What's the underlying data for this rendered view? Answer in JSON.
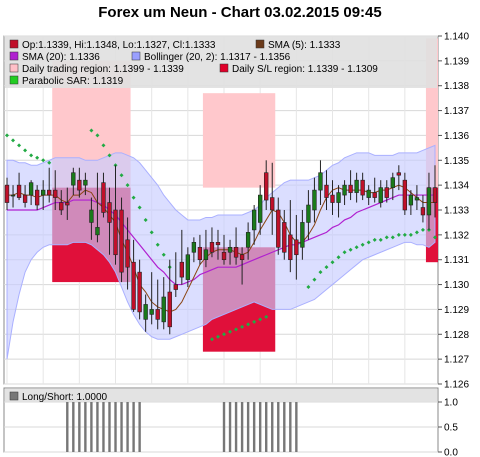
{
  "title": "Forex um Neun - Chart 03.02.2015 09:45",
  "legend": [
    {
      "label": "Op:1.1339, Hi:1.1348, Lo:1.1327, Cl:1.1333",
      "color": "#c0102a"
    },
    {
      "label": "SMA (5): 1.1333",
      "color": "#6b3a1a"
    },
    {
      "label": "SMA (20): 1.1336",
      "color": "#b020d0"
    },
    {
      "label": "Bollinger (20, 2): 1.1317 - 1.1356",
      "color": "#9aa0ff"
    },
    {
      "label": "Daily trading region: 1.1399 - 1.1339",
      "color": "#ffc0c8"
    },
    {
      "label": "Daily S/L region: 1.1339 - 1.1309",
      "color": "#e0002a"
    },
    {
      "label": "Parabolic SAR: 1.1319",
      "color": "#22cc22"
    }
  ],
  "sub_legend": {
    "label": "Long/Short: 1.0000",
    "color": "#777777"
  },
  "colors": {
    "up": "#1a7a1a",
    "down": "#c0102a",
    "sma5": "#8b4513",
    "sma20": "#b020d0",
    "band": "#c8ccff",
    "sar": "#22aa44",
    "trading": "#ffc8cc",
    "sl": "#e0103a",
    "bar": "#777777"
  },
  "chart_data": [
    {
      "type": "candlestick",
      "ylim": [
        1.126,
        1.14
      ],
      "yticks": [
        "1.126",
        "1.127",
        "1.128",
        "1.129",
        "1.130",
        "1.131",
        "1.132",
        "1.133",
        "1.134",
        "1.135",
        "1.136",
        "1.137",
        "1.138",
        "1.139",
        "1.140"
      ],
      "candles": [
        {
          "o": 1.134,
          "h": 1.1343,
          "l": 1.133,
          "c": 1.1333
        },
        {
          "o": 1.1336,
          "h": 1.134,
          "l": 1.1331,
          "c": 1.1336
        },
        {
          "o": 1.134,
          "h": 1.1345,
          "l": 1.1334,
          "c": 1.1335
        },
        {
          "o": 1.1336,
          "h": 1.134,
          "l": 1.1331,
          "c": 1.1333
        },
        {
          "o": 1.1336,
          "h": 1.1342,
          "l": 1.1332,
          "c": 1.1341
        },
        {
          "o": 1.1338,
          "h": 1.134,
          "l": 1.133,
          "c": 1.1332
        },
        {
          "o": 1.1336,
          "h": 1.1342,
          "l": 1.133,
          "c": 1.1338
        },
        {
          "o": 1.1338,
          "h": 1.1347,
          "l": 1.1333,
          "c": 1.1336
        },
        {
          "o": 1.1338,
          "h": 1.1346,
          "l": 1.133,
          "c": 1.1335
        },
        {
          "o": 1.1333,
          "h": 1.1338,
          "l": 1.1328,
          "c": 1.133
        },
        {
          "o": 1.1333,
          "h": 1.1339,
          "l": 1.1326,
          "c": 1.1332
        },
        {
          "o": 1.134,
          "h": 1.1347,
          "l": 1.1336,
          "c": 1.1345
        },
        {
          "o": 1.1342,
          "h": 1.1347,
          "l": 1.1335,
          "c": 1.1338
        },
        {
          "o": 1.134,
          "h": 1.1345,
          "l": 1.1336,
          "c": 1.1342
        },
        {
          "o": 1.1325,
          "h": 1.1335,
          "l": 1.1318,
          "c": 1.133
        },
        {
          "o": 1.132,
          "h": 1.1345,
          "l": 1.1317,
          "c": 1.1323
        },
        {
          "o": 1.1341,
          "h": 1.1345,
          "l": 1.1327,
          "c": 1.1329
        },
        {
          "o": 1.1333,
          "h": 1.1339,
          "l": 1.1312,
          "c": 1.1325
        },
        {
          "o": 1.133,
          "h": 1.1348,
          "l": 1.1308,
          "c": 1.1312
        },
        {
          "o": 1.133,
          "h": 1.1335,
          "l": 1.1301,
          "c": 1.1305
        },
        {
          "o": 1.1318,
          "h": 1.1327,
          "l": 1.1298,
          "c": 1.1307
        },
        {
          "o": 1.1309,
          "h": 1.1318,
          "l": 1.1289,
          "c": 1.129
        },
        {
          "o": 1.1305,
          "h": 1.131,
          "l": 1.1286,
          "c": 1.1289
        },
        {
          "o": 1.1286,
          "h": 1.1296,
          "l": 1.1281,
          "c": 1.1292
        },
        {
          "o": 1.1288,
          "h": 1.1305,
          "l": 1.1284,
          "c": 1.129
        },
        {
          "o": 1.129,
          "h": 1.1302,
          "l": 1.1282,
          "c": 1.1286
        },
        {
          "o": 1.1285,
          "h": 1.1303,
          "l": 1.1282,
          "c": 1.1295
        },
        {
          "o": 1.1297,
          "h": 1.131,
          "l": 1.128,
          "c": 1.1283
        },
        {
          "o": 1.13,
          "h": 1.1313,
          "l": 1.1295,
          "c": 1.1298
        },
        {
          "o": 1.1309,
          "h": 1.1322,
          "l": 1.13,
          "c": 1.1303
        },
        {
          "o": 1.1302,
          "h": 1.1315,
          "l": 1.1299,
          "c": 1.1312
        },
        {
          "o": 1.1313,
          "h": 1.1319,
          "l": 1.1309,
          "c": 1.1317
        },
        {
          "o": 1.1315,
          "h": 1.132,
          "l": 1.1308,
          "c": 1.131
        },
        {
          "o": 1.131,
          "h": 1.1322,
          "l": 1.1307,
          "c": 1.1314
        },
        {
          "o": 1.1317,
          "h": 1.1323,
          "l": 1.1311,
          "c": 1.1313
        },
        {
          "o": 1.1317,
          "h": 1.1322,
          "l": 1.131,
          "c": 1.1316
        },
        {
          "o": 1.1313,
          "h": 1.132,
          "l": 1.1308,
          "c": 1.131
        },
        {
          "o": 1.1313,
          "h": 1.1318,
          "l": 1.1308,
          "c": 1.1315
        },
        {
          "o": 1.1315,
          "h": 1.1323,
          "l": 1.1308,
          "c": 1.1311
        },
        {
          "o": 1.1312,
          "h": 1.1315,
          "l": 1.13,
          "c": 1.131
        },
        {
          "o": 1.1315,
          "h": 1.1325,
          "l": 1.131,
          "c": 1.1321
        },
        {
          "o": 1.1322,
          "h": 1.1332,
          "l": 1.1316,
          "c": 1.133
        },
        {
          "o": 1.1325,
          "h": 1.134,
          "l": 1.132,
          "c": 1.1336
        },
        {
          "o": 1.1345,
          "h": 1.135,
          "l": 1.133,
          "c": 1.1334
        },
        {
          "o": 1.1335,
          "h": 1.1349,
          "l": 1.132,
          "c": 1.133
        },
        {
          "o": 1.133,
          "h": 1.1335,
          "l": 1.1312,
          "c": 1.1315
        },
        {
          "o": 1.1325,
          "h": 1.133,
          "l": 1.131,
          "c": 1.1313
        },
        {
          "o": 1.132,
          "h": 1.1334,
          "l": 1.1305,
          "c": 1.131
        },
        {
          "o": 1.1318,
          "h": 1.1328,
          "l": 1.1302,
          "c": 1.1312
        },
        {
          "o": 1.1315,
          "h": 1.133,
          "l": 1.131,
          "c": 1.1325
        },
        {
          "o": 1.1325,
          "h": 1.1338,
          "l": 1.1318,
          "c": 1.1332
        },
        {
          "o": 1.133,
          "h": 1.1343,
          "l": 1.1325,
          "c": 1.1338
        },
        {
          "o": 1.1338,
          "h": 1.135,
          "l": 1.1332,
          "c": 1.1345
        },
        {
          "o": 1.134,
          "h": 1.1346,
          "l": 1.133,
          "c": 1.1335
        },
        {
          "o": 1.1336,
          "h": 1.1342,
          "l": 1.1328,
          "c": 1.1333
        },
        {
          "o": 1.1333,
          "h": 1.134,
          "l": 1.1327,
          "c": 1.1337
        },
        {
          "o": 1.1336,
          "h": 1.1342,
          "l": 1.1332,
          "c": 1.134
        },
        {
          "o": 1.134,
          "h": 1.1346,
          "l": 1.1334,
          "c": 1.1337
        },
        {
          "o": 1.1337,
          "h": 1.1345,
          "l": 1.1333,
          "c": 1.1342
        },
        {
          "o": 1.1342,
          "h": 1.1345,
          "l": 1.1334,
          "c": 1.1336
        },
        {
          "o": 1.1335,
          "h": 1.134,
          "l": 1.1332,
          "c": 1.1338
        },
        {
          "o": 1.1337,
          "h": 1.1343,
          "l": 1.1333,
          "c": 1.1335
        },
        {
          "o": 1.1333,
          "h": 1.1342,
          "l": 1.1331,
          "c": 1.1339
        },
        {
          "o": 1.1339,
          "h": 1.1342,
          "l": 1.1333,
          "c": 1.1335
        },
        {
          "o": 1.1339,
          "h": 1.1345,
          "l": 1.1334,
          "c": 1.1343
        },
        {
          "o": 1.1345,
          "h": 1.1348,
          "l": 1.1338,
          "c": 1.1344
        },
        {
          "o": 1.1342,
          "h": 1.1345,
          "l": 1.1328,
          "c": 1.133
        },
        {
          "o": 1.1332,
          "h": 1.1338,
          "l": 1.1328,
          "c": 1.1336
        },
        {
          "o": 1.1334,
          "h": 1.134,
          "l": 1.133,
          "c": 1.1335
        },
        {
          "o": 1.1331,
          "h": 1.1336,
          "l": 1.1325,
          "c": 1.1328
        },
        {
          "o": 1.1328,
          "h": 1.1345,
          "l": 1.1322,
          "c": 1.1339
        },
        {
          "o": 1.1339,
          "h": 1.1348,
          "l": 1.1327,
          "c": 1.1333
        }
      ],
      "sma5": [
        1.1336,
        1.1336,
        1.1337,
        1.1336,
        1.1336,
        1.1335,
        1.1336,
        1.1336,
        1.1336,
        1.1334,
        1.1333,
        1.1336,
        1.1336,
        1.1338,
        1.1337,
        1.1333,
        1.1331,
        1.1328,
        1.1325,
        1.1318,
        1.1313,
        1.1307,
        1.13,
        1.1297,
        1.1293,
        1.1291,
        1.129,
        1.1289,
        1.129,
        1.1293,
        1.1298,
        1.1303,
        1.1308,
        1.1311,
        1.1313,
        1.1314,
        1.1314,
        1.1314,
        1.1313,
        1.1312,
        1.1313,
        1.1317,
        1.1322,
        1.1326,
        1.133,
        1.1329,
        1.1325,
        1.132,
        1.1317,
        1.1317,
        1.132,
        1.1324,
        1.133,
        1.1335,
        1.1338,
        1.1339,
        1.1338,
        1.1338,
        1.1338,
        1.1338,
        1.1337,
        1.1337,
        1.1338,
        1.1338,
        1.1339,
        1.134,
        1.1339,
        1.1337,
        1.1335,
        1.1333,
        1.1333,
        1.1333
      ],
      "sma20": [
        1.133,
        1.133,
        1.133,
        1.133,
        1.133,
        1.133,
        1.1331,
        1.1332,
        1.1333,
        1.1333,
        1.1333,
        1.1334,
        1.1334,
        1.1334,
        1.1334,
        1.1333,
        1.1332,
        1.133,
        1.1328,
        1.1325,
        1.1322,
        1.1319,
        1.1316,
        1.1313,
        1.131,
        1.1307,
        1.1305,
        1.1302,
        1.13,
        1.13,
        1.1301,
        1.1302,
        1.1304,
        1.1305,
        1.1306,
        1.1307,
        1.1307,
        1.1307,
        1.1307,
        1.1308,
        1.1309,
        1.131,
        1.1311,
        1.1312,
        1.1313,
        1.1314,
        1.1315,
        1.1316,
        1.1316,
        1.1317,
        1.1318,
        1.1319,
        1.132,
        1.1321,
        1.1323,
        1.1324,
        1.1326,
        1.1327,
        1.1329,
        1.133,
        1.1331,
        1.1332,
        1.1333,
        1.1334,
        1.1335,
        1.1336,
        1.1336,
        1.1336,
        1.1336,
        1.1336,
        1.1336,
        1.1336
      ],
      "bb_upper": [
        1.135,
        1.135,
        1.1349,
        1.1349,
        1.1348,
        1.1348,
        1.1349,
        1.135,
        1.1351,
        1.1351,
        1.1351,
        1.1351,
        1.1351,
        1.135,
        1.135,
        1.135,
        1.1351,
        1.1352,
        1.1353,
        1.1353,
        1.1352,
        1.1351,
        1.1349,
        1.1346,
        1.1343,
        1.134,
        1.1336,
        1.1333,
        1.133,
        1.1328,
        1.1326,
        1.1326,
        1.1326,
        1.1327,
        1.1327,
        1.1328,
        1.1328,
        1.1328,
        1.1328,
        1.1328,
        1.1329,
        1.133,
        1.1332,
        1.1335,
        1.1337,
        1.1339,
        1.1341,
        1.1342,
        1.1342,
        1.1342,
        1.1342,
        1.1343,
        1.1344,
        1.1346,
        1.1348,
        1.1349,
        1.1351,
        1.1352,
        1.1353,
        1.1353,
        1.1353,
        1.1352,
        1.1352,
        1.1352,
        1.1352,
        1.1353,
        1.1353,
        1.1353,
        1.1353,
        1.1354,
        1.1355,
        1.1356
      ],
      "bb_lower": [
        1.127,
        1.1285,
        1.1296,
        1.1305,
        1.131,
        1.1313,
        1.1315,
        1.1316,
        1.1316,
        1.1316,
        1.1316,
        1.1317,
        1.1317,
        1.1317,
        1.1316,
        1.1314,
        1.1312,
        1.1309,
        1.1305,
        1.1299,
        1.1293,
        1.1288,
        1.1284,
        1.1281,
        1.1279,
        1.1278,
        1.1278,
        1.1278,
        1.1279,
        1.128,
        1.1281,
        1.1282,
        1.1283,
        1.1284,
        1.1286,
        1.1287,
        1.1288,
        1.1289,
        1.129,
        1.1291,
        1.1292,
        1.1293,
        1.1292,
        1.1291,
        1.129,
        1.129,
        1.129,
        1.129,
        1.1291,
        1.1292,
        1.1293,
        1.1294,
        1.1296,
        1.1298,
        1.13,
        1.1302,
        1.1304,
        1.1306,
        1.1308,
        1.131,
        1.1311,
        1.1312,
        1.1313,
        1.1314,
        1.1315,
        1.1316,
        1.1317,
        1.1317,
        1.1316,
        1.1316,
        1.1315,
        1.1317
      ],
      "sar": [
        1.136,
        1.1358,
        1.1356,
        1.1354,
        1.1352,
        1.1351,
        1.135,
        1.1349,
        null,
        null,
        null,
        null,
        null,
        null,
        1.1362,
        1.136,
        1.1356,
        1.1352,
        1.1348,
        1.1344,
        1.134,
        1.1335,
        1.1331,
        1.1326,
        1.1321,
        1.1316,
        1.1312,
        1.1307,
        null,
        null,
        null,
        null,
        null,
        null,
        1.1278,
        1.1279,
        1.128,
        1.1281,
        1.1282,
        1.1283,
        1.1284,
        1.1285,
        1.1286,
        1.1287,
        null,
        null,
        null,
        null,
        null,
        null,
        1.1299,
        1.1302,
        1.1305,
        1.1307,
        1.1309,
        1.1311,
        1.1313,
        1.1314,
        1.1315,
        1.1316,
        1.1317,
        1.1318,
        1.1318,
        1.1319,
        1.1319,
        1.132,
        1.132,
        1.132,
        1.1321,
        1.1322,
        1.1322,
        1.1319
      ],
      "trading_regions": [
        {
          "start": 8,
          "end": 20,
          "top": 1.139,
          "bottom": 1.1339
        },
        {
          "start": 33,
          "end": 44,
          "top": 1.1377,
          "bottom": 1.1339
        },
        {
          "start": 70,
          "end": 71,
          "top": 1.1399,
          "bottom": 1.1339
        }
      ],
      "sl_regions": [
        {
          "start": 8,
          "end": 20,
          "top": 1.1339,
          "bottom": 1.1301
        },
        {
          "start": 33,
          "end": 44,
          "top": 1.1315,
          "bottom": 1.1273
        },
        {
          "start": 70,
          "end": 71,
          "top": 1.1339,
          "bottom": 1.1309
        }
      ]
    },
    {
      "type": "bar",
      "title": "Long/Short: 1.0000",
      "ylim": [
        0.0,
        1.0
      ],
      "yticks": [
        "0.0",
        "0.5",
        "1.0"
      ],
      "values": [
        0,
        0,
        0,
        0,
        0,
        0,
        0,
        0,
        0,
        0,
        1,
        1,
        1,
        1,
        1,
        1,
        1,
        1,
        1,
        1,
        1,
        1,
        1,
        0,
        0,
        0,
        0,
        0,
        0,
        0,
        0,
        0,
        0,
        0,
        0,
        0,
        1,
        1,
        1,
        1,
        1,
        1,
        1,
        1,
        1,
        1,
        1,
        1,
        1,
        0,
        0,
        0,
        0,
        0,
        0,
        0,
        0,
        0,
        0,
        0,
        0,
        0,
        0,
        0,
        0,
        0,
        0,
        0,
        0,
        0,
        0,
        0
      ]
    }
  ]
}
